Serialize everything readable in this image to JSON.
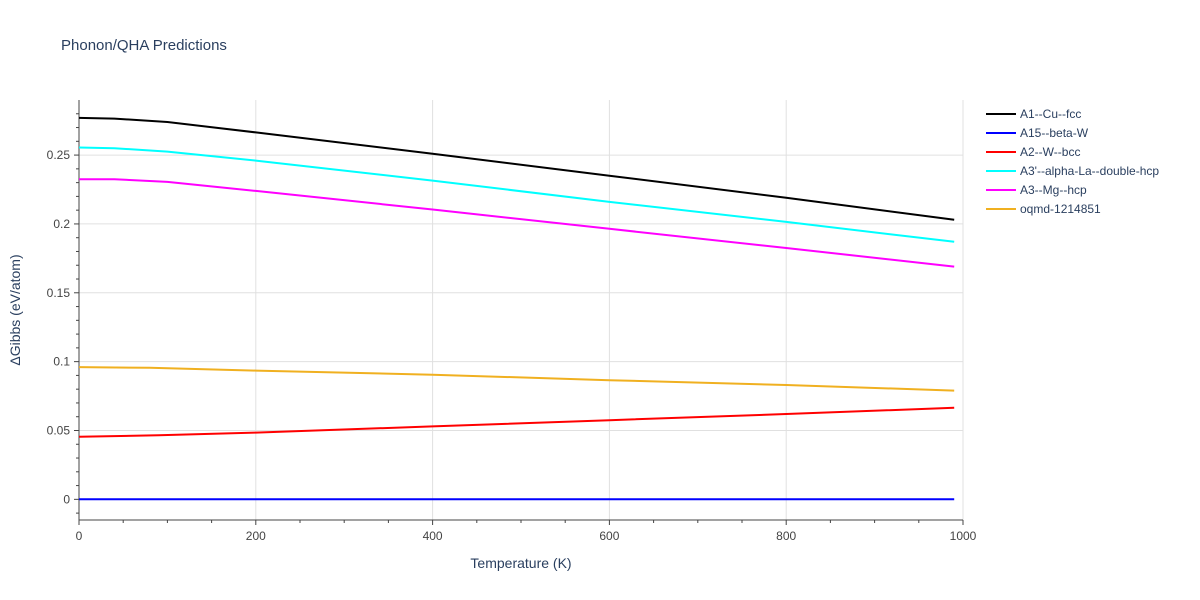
{
  "chart_data": {
    "type": "line",
    "title": "Phonon/QHA Predictions",
    "xlabel": "Temperature (K)",
    "ylabel": "ΔGibbs (eV/atom)",
    "xlim": [
      0,
      1000
    ],
    "ylim": [
      -0.015,
      0.29
    ],
    "xticks": [
      0,
      200,
      400,
      600,
      800,
      1000
    ],
    "xtick_labels": [
      "0",
      "200",
      "400",
      "600",
      "800",
      "1000"
    ],
    "yticks": [
      0,
      0.05,
      0.1,
      0.15,
      0.2,
      0.25
    ],
    "ytick_labels": [
      "0",
      "0.05",
      "0.1",
      "0.15",
      "0.2",
      "0.25"
    ],
    "grid": true,
    "legend_position": "right",
    "series": [
      {
        "name": "A1--Cu--fcc",
        "color": "#000000",
        "x": [
          0,
          40,
          100,
          200,
          400,
          600,
          800,
          990
        ],
        "y": [
          0.277,
          0.2765,
          0.274,
          0.2665,
          0.251,
          0.235,
          0.219,
          0.203
        ]
      },
      {
        "name": "A15--beta-W",
        "color": "#0000ff",
        "x": [
          0,
          200,
          400,
          600,
          800,
          990
        ],
        "y": [
          0,
          0,
          0,
          0,
          0,
          0
        ]
      },
      {
        "name": "A2--W--bcc",
        "color": "#ff0000",
        "x": [
          0,
          90,
          200,
          400,
          600,
          800,
          990
        ],
        "y": [
          0.0455,
          0.0465,
          0.0485,
          0.053,
          0.0575,
          0.062,
          0.0665
        ]
      },
      {
        "name": "A3'--alpha-La--double-hcp",
        "color": "#00ffff",
        "x": [
          0,
          40,
          100,
          200,
          400,
          600,
          800,
          990
        ],
        "y": [
          0.2555,
          0.255,
          0.2525,
          0.246,
          0.2315,
          0.216,
          0.2015,
          0.187
        ]
      },
      {
        "name": "A3--Mg--hcp",
        "color": "#ff00ff",
        "x": [
          0,
          40,
          100,
          200,
          400,
          600,
          800,
          990
        ],
        "y": [
          0.2325,
          0.2325,
          0.2305,
          0.224,
          0.2105,
          0.1965,
          0.1825,
          0.169
        ]
      },
      {
        "name": "oqmd-1214851",
        "color": "#f0b020",
        "x": [
          0,
          80,
          200,
          400,
          600,
          800,
          990
        ],
        "y": [
          0.096,
          0.0955,
          0.0935,
          0.0905,
          0.0865,
          0.083,
          0.079
        ]
      }
    ]
  }
}
